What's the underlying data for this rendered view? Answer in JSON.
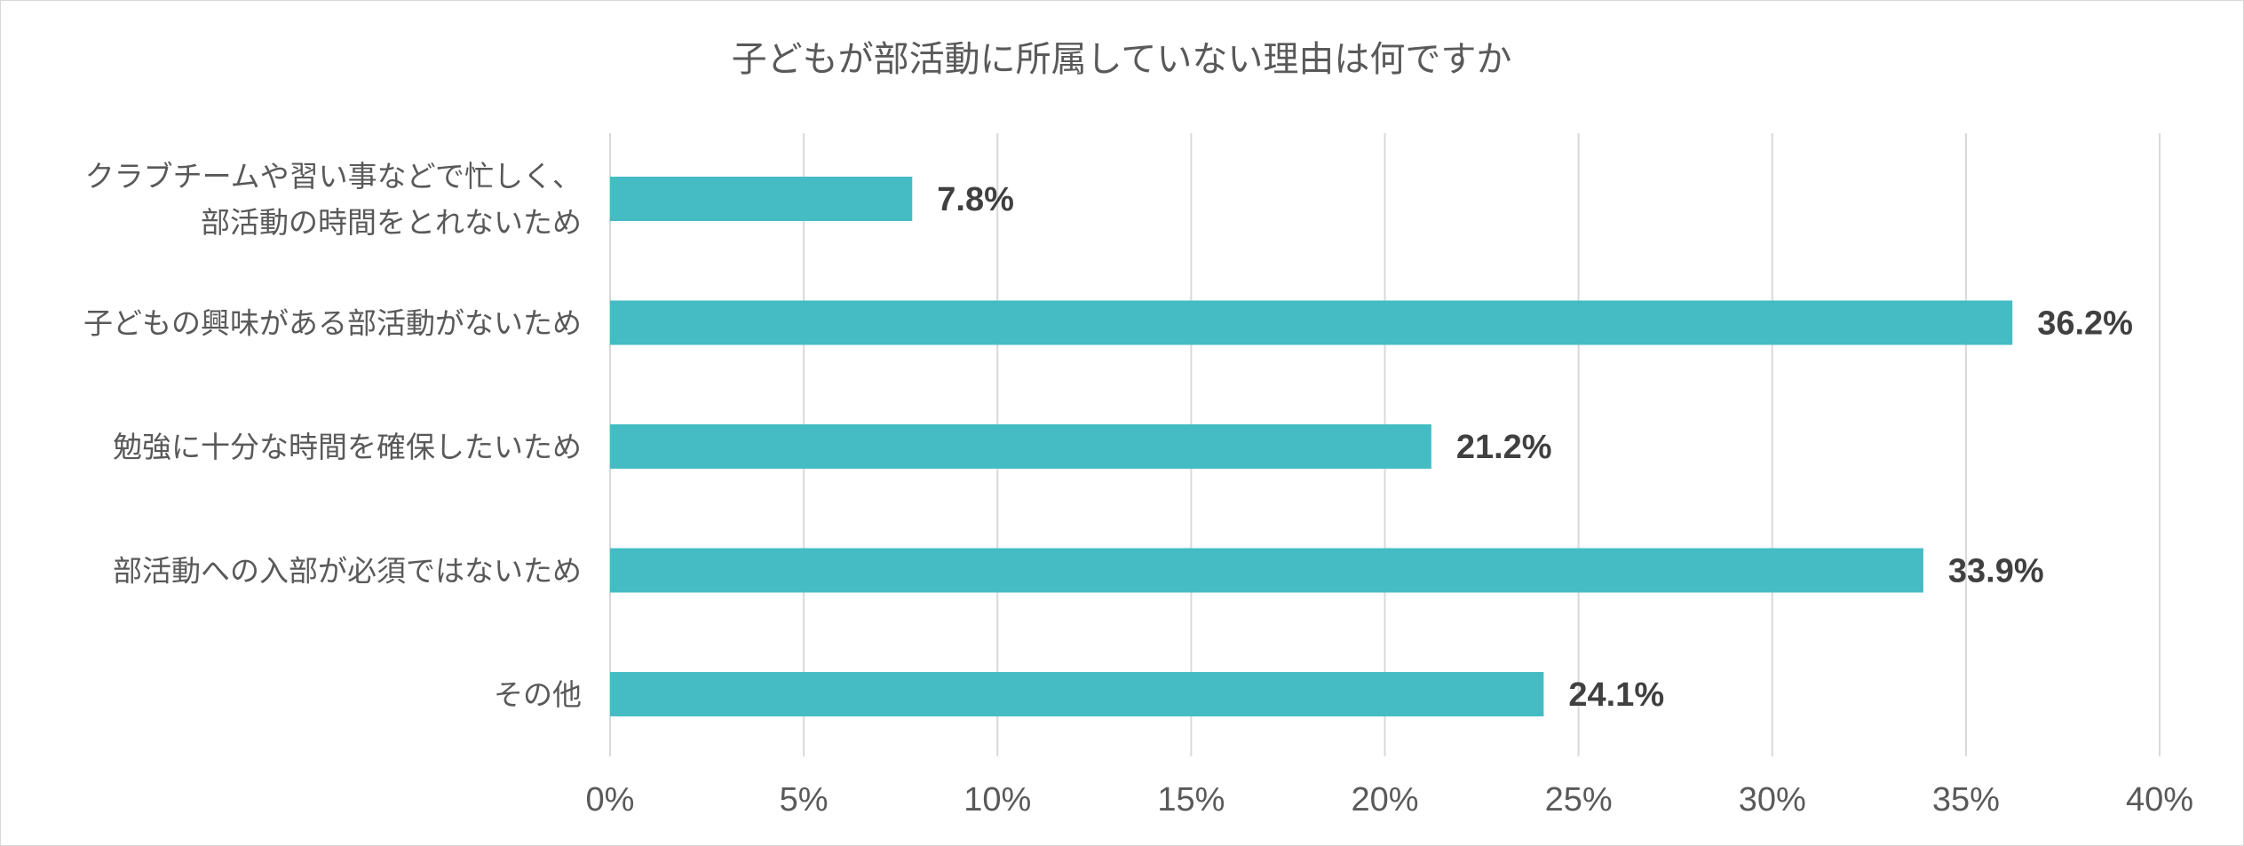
{
  "chart_data": {
    "type": "bar",
    "orientation": "horizontal",
    "title": "子どもが部活動に所属していない理由は何ですか",
    "categories": [
      [
        "クラブチームや習い事などで忙しく、",
        "部活動の時間をとれないため"
      ],
      [
        "子どもの興味がある部活動がないため"
      ],
      [
        "勉強に十分な時間を確保したいため"
      ],
      [
        "部活動への入部が必須ではないため"
      ],
      [
        "その他"
      ]
    ],
    "values": [
      7.8,
      36.2,
      21.2,
      33.9,
      24.1
    ],
    "data_labels": [
      "7.8%",
      "36.2%",
      "21.2%",
      "33.9%",
      "24.1%"
    ],
    "xlim": [
      0,
      40
    ],
    "x_ticks": [
      0,
      5,
      10,
      15,
      20,
      25,
      30,
      35,
      40
    ],
    "x_tick_labels": [
      "0%",
      "5%",
      "10%",
      "15%",
      "20%",
      "25%",
      "30%",
      "35%",
      "40%"
    ],
    "grid": true,
    "legend": "none",
    "bar_color": "#45BCC4"
  }
}
